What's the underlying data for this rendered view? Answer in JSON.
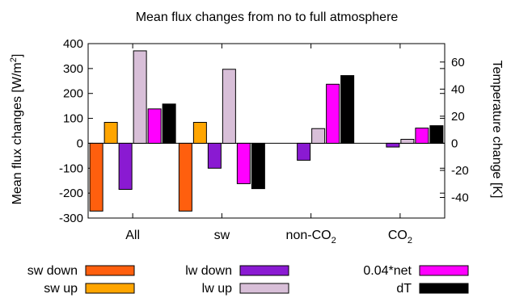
{
  "chart_data": {
    "type": "bar",
    "title": "Mean flux changes from no to full atmosphere",
    "ylabel": "Mean flux changes [W/m",
    "ylabel_sup": "2",
    "ylabel_end": "]",
    "y2label": "Temperature change [K]",
    "ylim": [
      -300,
      400
    ],
    "y2lim": [
      -55.2,
      73.6
    ],
    "yticks": [
      -300,
      -200,
      -100,
      0,
      100,
      200,
      300,
      400
    ],
    "y2ticks": [
      -40,
      -20,
      0,
      20,
      40,
      60
    ],
    "categories": [
      {
        "label": "All",
        "sub": ""
      },
      {
        "label": "sw",
        "sub": ""
      },
      {
        "label": "non-CO",
        "sub": "2"
      },
      {
        "label": "CO",
        "sub": "2"
      }
    ],
    "series": [
      {
        "name": "sw down",
        "color": "#ff5f0e",
        "values": [
          -272,
          -272,
          0,
          0
        ]
      },
      {
        "name": "sw up",
        "color": "#ffa500",
        "values": [
          84,
          84,
          0,
          0
        ]
      },
      {
        "name": "lw down",
        "color": "#8a1ad2",
        "values": [
          -185,
          -100,
          -68,
          -15
        ]
      },
      {
        "name": "lw up",
        "color": "#d8bfd8",
        "values": [
          371,
          297,
          59,
          16
        ]
      },
      {
        "name": "0.04*net",
        "color": "#ff00ff",
        "values": [
          138,
          -162,
          237,
          61
        ]
      },
      {
        "name": "dT",
        "color": "#000000",
        "values": [
          29,
          -33.5,
          50,
          13
        ],
        "axis": "y2"
      }
    ],
    "grid": false,
    "legend_position": "bottom"
  }
}
